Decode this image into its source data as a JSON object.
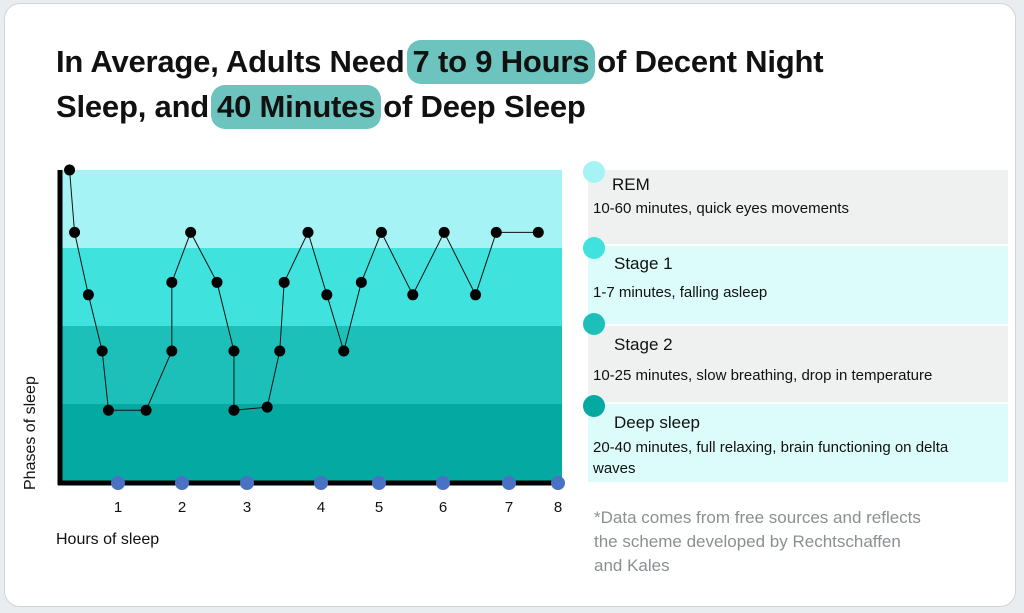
{
  "title": {
    "part1": "In Average, Adults Need",
    "highlight1": "7 to 9 Hours",
    "part2": "of Decent Night",
    "part3": "Sleep, and",
    "highlight2": "40 Minutes",
    "part4": "of Deep Sleep"
  },
  "colors": {
    "highlight": "#6dc3bd",
    "rem": "#a6f3f6",
    "stage1": "#40e2de",
    "stage2": "#1cc0b9",
    "deep": "#04a9a2",
    "tick_dot": "#4a72c4",
    "legend_gray": "#eff1f1",
    "legend_cyan": "#dcfbfb"
  },
  "legend": [
    {
      "name": "REM",
      "desc": "10-60 minutes, quick eyes movements",
      "color": "#a6f3f6"
    },
    {
      "name": "Stage 1",
      "desc": "1-7 minutes, falling asleep",
      "color": "#40e2de"
    },
    {
      "name": "Stage 2",
      "desc": "10-25 minutes, slow breathing, drop in temperature",
      "color": "#1cc0b9"
    },
    {
      "name": "Deep sleep",
      "desc": "20-40 minutes, full relaxing, brain functioning on delta waves",
      "color": "#04a9a2"
    }
  ],
  "note": "*Data comes from free sources and reflects the scheme developed by Rechtschaffen and Kales",
  "chart_data": {
    "type": "line",
    "title": "",
    "xlabel": "Hours of sleep",
    "ylabel": "Phases of sleep",
    "xlim": [
      0,
      8
    ],
    "ylim": [
      0,
      5
    ],
    "x_ticks": [
      1,
      2,
      3,
      4,
      5,
      6,
      7,
      8
    ],
    "bands": [
      {
        "phase": "Deep sleep",
        "from": 0,
        "to": 1.25,
        "color": "#04a9a2"
      },
      {
        "phase": "Stage 2",
        "from": 1.25,
        "to": 2.5,
        "color": "#1cc0b9"
      },
      {
        "phase": "Stage 1",
        "from": 2.5,
        "to": 3.75,
        "color": "#40e2de"
      },
      {
        "phase": "REM",
        "from": 3.75,
        "to": 5.0,
        "color": "#a6f3f6"
      }
    ],
    "series": [
      {
        "points": [
          [
            0.2,
            5.0
          ],
          [
            0.28,
            4.0
          ],
          [
            0.5,
            3.0
          ],
          [
            0.72,
            2.1
          ],
          [
            0.82,
            1.15
          ],
          [
            1.42,
            1.15
          ],
          [
            1.83,
            2.1
          ],
          [
            1.83,
            3.2
          ],
          [
            2.13,
            4.0
          ],
          [
            2.55,
            3.2
          ],
          [
            2.82,
            2.1
          ],
          [
            2.82,
            1.15
          ],
          [
            3.35,
            1.2
          ],
          [
            3.55,
            2.1
          ],
          [
            3.62,
            3.2
          ],
          [
            4.0,
            4.0
          ],
          [
            4.3,
            3.0
          ],
          [
            4.57,
            2.1
          ],
          [
            4.85,
            3.2
          ],
          [
            5.17,
            4.0
          ],
          [
            5.67,
            3.0
          ],
          [
            6.17,
            4.0
          ],
          [
            6.67,
            3.0
          ],
          [
            7.0,
            4.0
          ],
          [
            7.67,
            4.0
          ]
        ]
      }
    ]
  },
  "axis": {
    "xlabel": "Hours of sleep",
    "ylabel": "Phases of sleep"
  }
}
